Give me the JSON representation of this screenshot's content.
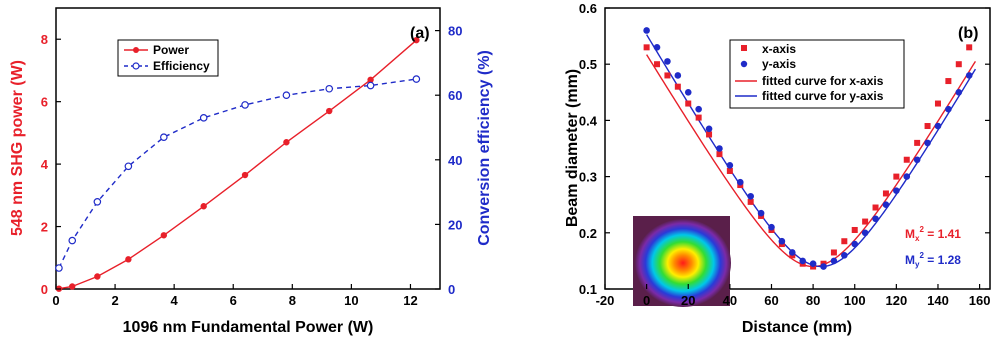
{
  "chart_data": [
    {
      "type": "line",
      "panel_label": "(a)",
      "xlabel": "1096 nm Fundamental Power (W)",
      "ylabel": "548 nm SHG power (W)",
      "y2label": "Conversion efficiency (%)",
      "xlim": [
        0,
        13
      ],
      "ylim": [
        0,
        9
      ],
      "y2lim": [
        0,
        87
      ],
      "xticks": [
        "0",
        "2",
        "4",
        "6",
        "8",
        "10",
        "12"
      ],
      "yticks": [
        "0",
        "2",
        "4",
        "6",
        "8"
      ],
      "y2ticks": [
        "0",
        "20",
        "40",
        "60",
        "80"
      ],
      "legend_position": "top-left",
      "series": [
        {
          "name": "Power",
          "axis": "left",
          "color": "#e8202a",
          "style": "solid",
          "marker": "filled-circle",
          "x": [
            0.1,
            0.55,
            1.4,
            2.45,
            3.65,
            5.0,
            6.4,
            7.8,
            9.25,
            10.65,
            12.2
          ],
          "y": [
            0.01,
            0.08,
            0.4,
            0.95,
            1.72,
            2.65,
            3.65,
            4.7,
            5.7,
            6.7,
            7.97
          ]
        },
        {
          "name": "Efficiency",
          "axis": "right",
          "color": "#1f2bc8",
          "style": "dashed",
          "marker": "open-circle",
          "x": [
            0.1,
            0.55,
            1.4,
            2.45,
            3.65,
            5.0,
            6.4,
            7.8,
            9.25,
            10.65,
            12.2
          ],
          "y": [
            6.5,
            15,
            27,
            38,
            47,
            53,
            57,
            60,
            62,
            63,
            65
          ]
        }
      ]
    },
    {
      "type": "scatter",
      "panel_label": "(b)",
      "xlabel": "Distance (mm)",
      "ylabel": "Beam diameter (mm)",
      "xlim": [
        -20,
        165
      ],
      "ylim": [
        0.1,
        0.6
      ],
      "xticks": [
        "-20",
        "0",
        "20",
        "40",
        "60",
        "80",
        "100",
        "120",
        "140",
        "160"
      ],
      "yticks": [
        "0.1",
        "0.2",
        "0.3",
        "0.4",
        "0.5",
        "0.6"
      ],
      "legend_position": "top-right",
      "series": [
        {
          "name": "x-axis",
          "color": "#e8202a",
          "marker": "filled-square",
          "x": [
            0,
            5,
            10,
            15,
            20,
            25,
            30,
            35,
            40,
            45,
            50,
            55,
            60,
            65,
            70,
            75,
            80,
            85,
            90,
            95,
            100,
            105,
            110,
            115,
            120,
            125,
            130,
            135,
            140,
            145,
            150,
            155
          ],
          "y": [
            0.53,
            0.5,
            0.48,
            0.46,
            0.43,
            0.405,
            0.375,
            0.34,
            0.31,
            0.285,
            0.255,
            0.23,
            0.205,
            0.18,
            0.16,
            0.145,
            0.14,
            0.145,
            0.165,
            0.185,
            0.205,
            0.22,
            0.245,
            0.27,
            0.3,
            0.33,
            0.36,
            0.39,
            0.43,
            0.47,
            0.5,
            0.53
          ]
        },
        {
          "name": "y-axis",
          "color": "#1f2bc8",
          "marker": "filled-circle",
          "x": [
            0,
            5,
            10,
            15,
            20,
            25,
            30,
            35,
            40,
            45,
            50,
            55,
            60,
            65,
            70,
            75,
            80,
            85,
            90,
            95,
            100,
            105,
            110,
            115,
            120,
            125,
            130,
            135,
            140,
            145,
            150,
            155
          ],
          "y": [
            0.56,
            0.53,
            0.505,
            0.48,
            0.45,
            0.42,
            0.385,
            0.35,
            0.32,
            0.29,
            0.265,
            0.235,
            0.21,
            0.185,
            0.165,
            0.15,
            0.145,
            0.14,
            0.15,
            0.16,
            0.18,
            0.2,
            0.225,
            0.25,
            0.275,
            0.3,
            0.33,
            0.36,
            0.39,
            0.42,
            0.45,
            0.48
          ]
        },
        {
          "name": "fitted curve for x-axis",
          "type": "line",
          "color": "#e8202a",
          "fit": {
            "w0": 0.14,
            "z0": 80,
            "zr": 22.5
          },
          "range": [
            0,
            158
          ]
        },
        {
          "name": "fitted curve for y-axis",
          "type": "line",
          "color": "#1f2bc8",
          "fit": {
            "w0": 0.14,
            "z0": 84,
            "zr": 22
          },
          "range": [
            0,
            158
          ]
        }
      ],
      "annotations": [
        {
          "text": "M",
          "sub": "x",
          "sup": "2",
          "value": " = 1.41",
          "color": "#e8202a"
        },
        {
          "text": "M",
          "sub": "y",
          "sup": "2",
          "value": " = 1.28",
          "color": "#1f2bc8"
        }
      ],
      "inset": "beam-profile-image"
    }
  ]
}
